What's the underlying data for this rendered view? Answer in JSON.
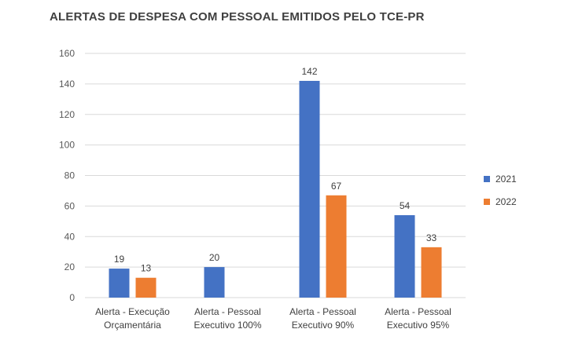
{
  "chart_data": {
    "type": "bar",
    "title": "ALERTAS DE DESPESA COM PESSOAL EMITIDOS PELO TCE-PR",
    "categories": [
      [
        "Alerta  - Execução",
        "Orçamentária"
      ],
      [
        "Alerta  - Pessoal",
        "Executivo 100%"
      ],
      [
        "Alerta  - Pessoal",
        "Executivo 90%"
      ],
      [
        "Alerta  - Pessoal",
        "Executivo 95%"
      ]
    ],
    "series": [
      {
        "name": "2021",
        "color": "#4472C4",
        "values": [
          19,
          20,
          142,
          54
        ]
      },
      {
        "name": "2022",
        "color": "#ED7D31",
        "values": [
          13,
          null,
          67,
          33
        ]
      }
    ],
    "ylim": [
      0,
      160
    ],
    "yticks": [
      0,
      20,
      40,
      60,
      80,
      100,
      120,
      140,
      160
    ],
    "grid": true,
    "legend": "right"
  }
}
